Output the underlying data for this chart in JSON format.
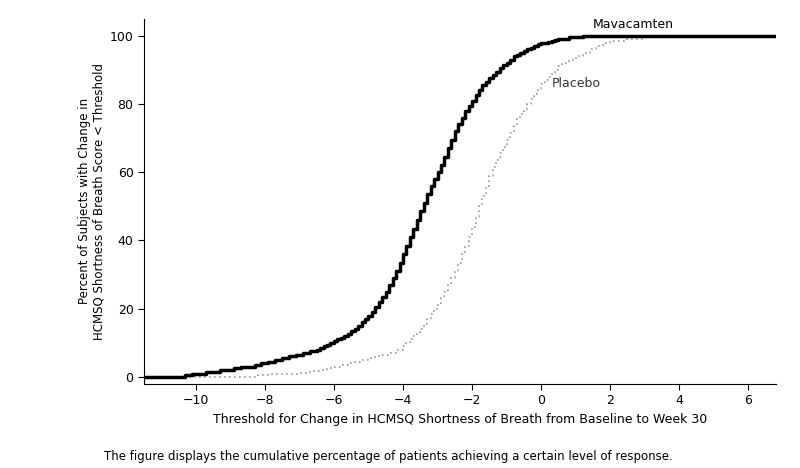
{
  "xlabel": "Threshold for Change in HCMSQ Shortness of Breath from Baseline to Week 30",
  "ylabel": "Percent of Subjects with Change in\nHCMSQ Shortness of Breath Score < Threshold",
  "caption": "The figure displays the cumulative percentage of patients achieving a certain level of response.",
  "xlim": [
    -11.5,
    6.8
  ],
  "ylim": [
    -2,
    105
  ],
  "xticks": [
    -10,
    -8,
    -6,
    -4,
    -2,
    0,
    2,
    4,
    6
  ],
  "yticks": [
    0,
    20,
    40,
    60,
    80,
    100
  ],
  "mavacamten_label": "Mavacamten",
  "placebo_label": "Placebo",
  "mavacamten_color": "#000000",
  "placebo_color": "#999999",
  "background_color": "#ffffff",
  "mavacamten_x": [
    -11.5,
    -10.5,
    -10.3,
    -10.1,
    -9.9,
    -9.7,
    -9.5,
    -9.3,
    -9.1,
    -8.9,
    -8.7,
    -8.5,
    -8.3,
    -8.1,
    -7.9,
    -7.7,
    -7.5,
    -7.3,
    -7.1,
    -6.9,
    -6.7,
    -6.5,
    -6.4,
    -6.3,
    -6.2,
    -6.1,
    -6.0,
    -5.9,
    -5.8,
    -5.7,
    -5.6,
    -5.5,
    -5.4,
    -5.3,
    -5.2,
    -5.1,
    -5.0,
    -4.9,
    -4.8,
    -4.7,
    -4.6,
    -4.5,
    -4.4,
    -4.3,
    -4.2,
    -4.1,
    -4.0,
    -3.9,
    -3.8,
    -3.7,
    -3.6,
    -3.5,
    -3.4,
    -3.3,
    -3.2,
    -3.1,
    -3.0,
    -2.9,
    -2.8,
    -2.7,
    -2.6,
    -2.5,
    -2.4,
    -2.3,
    -2.2,
    -2.1,
    -2.0,
    -1.9,
    -1.8,
    -1.7,
    -1.6,
    -1.5,
    -1.4,
    -1.3,
    -1.2,
    -1.1,
    -1.0,
    -0.9,
    -0.8,
    -0.7,
    -0.6,
    -0.5,
    -0.4,
    -0.3,
    -0.2,
    -0.1,
    0.0,
    0.1,
    0.2,
    0.3,
    0.4,
    0.5,
    0.6,
    0.8,
    1.0,
    1.2,
    1.4,
    1.6,
    1.8,
    2.0,
    2.5,
    3.0,
    4.0,
    6.8
  ],
  "mavacamten_y": [
    0.0,
    0.0,
    0.5,
    1.0,
    1.0,
    1.5,
    1.5,
    2.0,
    2.0,
    2.5,
    3.0,
    3.0,
    3.5,
    4.0,
    4.5,
    5.0,
    5.5,
    6.0,
    6.5,
    7.0,
    7.5,
    8.0,
    8.5,
    9.0,
    9.5,
    10.0,
    10.5,
    11.0,
    11.5,
    12.0,
    12.5,
    13.5,
    14.0,
    15.0,
    16.0,
    17.0,
    18.0,
    19.0,
    20.5,
    22.0,
    23.5,
    25.0,
    27.0,
    29.0,
    31.0,
    33.5,
    36.0,
    38.5,
    41.0,
    43.5,
    46.0,
    48.5,
    51.0,
    53.5,
    56.0,
    58.0,
    60.0,
    62.0,
    64.5,
    67.0,
    69.5,
    72.0,
    74.0,
    76.0,
    78.0,
    79.5,
    81.0,
    82.5,
    84.0,
    85.5,
    86.5,
    87.5,
    88.5,
    89.5,
    90.5,
    91.5,
    92.0,
    93.0,
    94.0,
    94.5,
    95.0,
    95.5,
    96.0,
    96.5,
    97.0,
    97.5,
    97.8,
    98.0,
    98.2,
    98.5,
    98.7,
    99.0,
    99.2,
    99.5,
    99.7,
    99.8,
    99.9,
    100.0,
    100.0,
    100.0,
    100.0,
    100.0,
    100.0,
    100.0
  ],
  "placebo_x": [
    -11.5,
    -8.5,
    -8.2,
    -7.8,
    -7.4,
    -7.0,
    -6.8,
    -6.6,
    -6.4,
    -6.2,
    -6.0,
    -5.8,
    -5.6,
    -5.4,
    -5.2,
    -5.0,
    -4.8,
    -4.6,
    -4.4,
    -4.2,
    -4.0,
    -3.9,
    -3.8,
    -3.7,
    -3.6,
    -3.5,
    -3.4,
    -3.3,
    -3.2,
    -3.1,
    -3.0,
    -2.9,
    -2.8,
    -2.7,
    -2.6,
    -2.5,
    -2.4,
    -2.3,
    -2.2,
    -2.1,
    -2.0,
    -1.9,
    -1.8,
    -1.7,
    -1.6,
    -1.5,
    -1.4,
    -1.3,
    -1.2,
    -1.1,
    -1.0,
    -0.9,
    -0.8,
    -0.7,
    -0.6,
    -0.5,
    -0.4,
    -0.3,
    -0.2,
    -0.1,
    0.0,
    0.1,
    0.2,
    0.3,
    0.4,
    0.5,
    0.6,
    0.8,
    1.0,
    1.2,
    1.4,
    1.6,
    1.8,
    2.0,
    2.5,
    3.0,
    4.0,
    6.8
  ],
  "placebo_y": [
    0.0,
    0.0,
    0.5,
    0.8,
    1.0,
    1.2,
    1.5,
    1.8,
    2.0,
    2.5,
    3.0,
    3.5,
    4.0,
    4.5,
    5.0,
    5.5,
    6.0,
    6.5,
    7.0,
    8.0,
    9.0,
    10.0,
    11.0,
    12.0,
    13.0,
    14.0,
    15.5,
    17.0,
    18.5,
    20.0,
    21.5,
    23.0,
    25.0,
    27.0,
    29.0,
    31.0,
    33.5,
    36.0,
    38.5,
    41.0,
    44.0,
    47.0,
    50.0,
    53.0,
    56.0,
    59.0,
    61.5,
    63.5,
    65.5,
    67.5,
    69.5,
    71.5,
    73.5,
    75.5,
    77.0,
    78.5,
    80.0,
    81.5,
    83.0,
    84.5,
    86.0,
    87.0,
    88.0,
    89.0,
    90.0,
    91.0,
    92.0,
    93.0,
    94.0,
    95.0,
    96.0,
    97.0,
    97.8,
    98.5,
    99.0,
    99.5,
    100.0,
    100.0
  ]
}
